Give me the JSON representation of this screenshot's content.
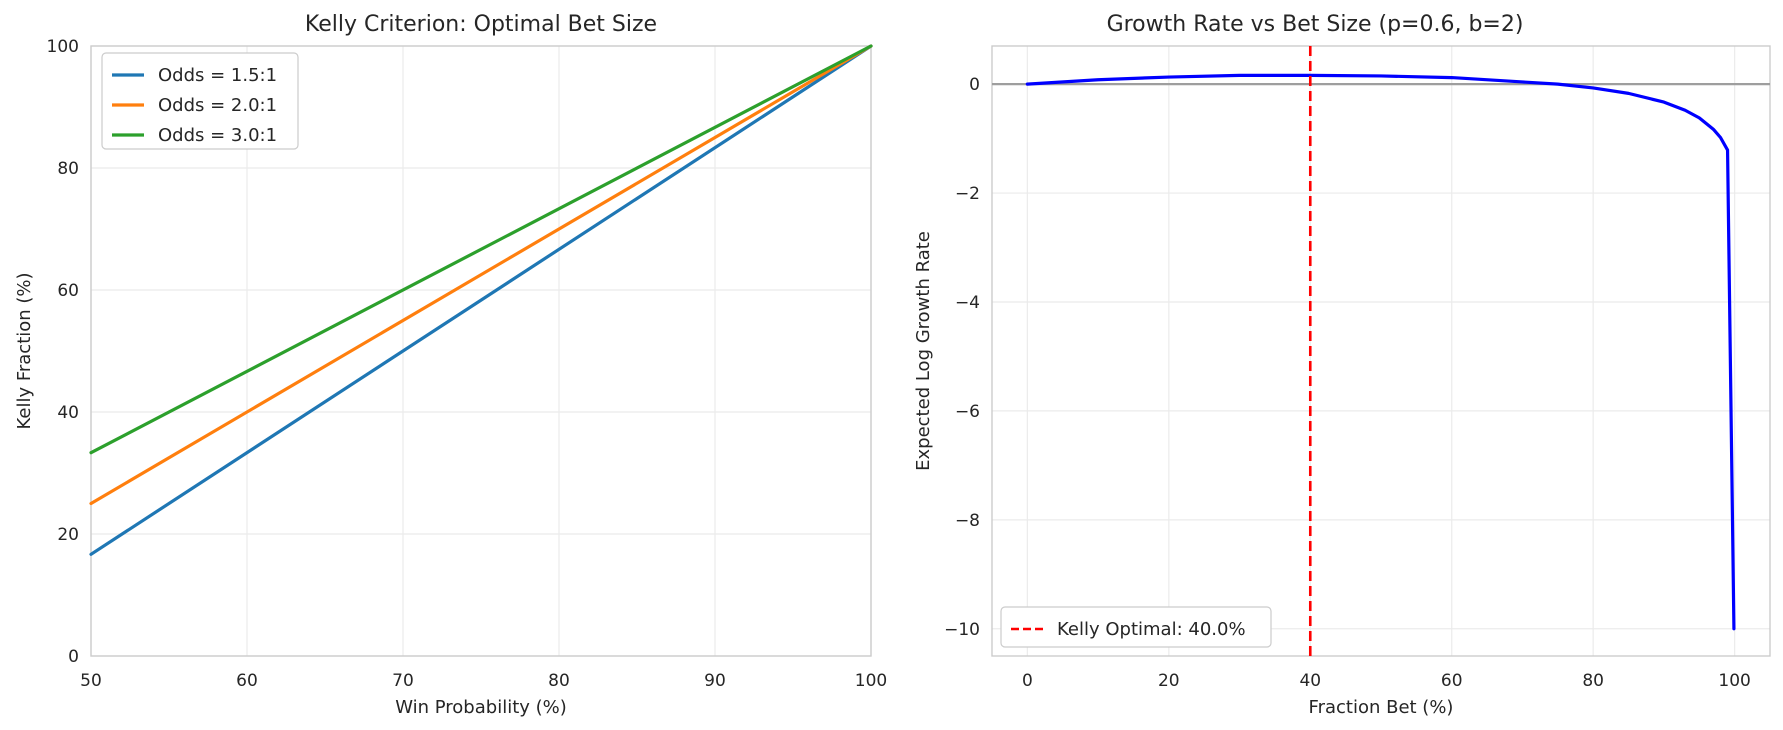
{
  "chart_data": [
    {
      "type": "line",
      "title": "Kelly Criterion: Optimal Bet Size",
      "xlabel": "Win Probability (%)",
      "ylabel": "Kelly Fraction (%)",
      "xlim": [
        50,
        100
      ],
      "ylim": [
        0,
        100
      ],
      "xticks": [
        50,
        60,
        70,
        80,
        90,
        100
      ],
      "yticks": [
        0,
        20,
        40,
        60,
        80,
        100
      ],
      "grid": true,
      "legend_position": "upper-left",
      "x": [
        50,
        100
      ],
      "series": [
        {
          "name": "Odds = 1.5:1",
          "color": "#1f77b4",
          "values": [
            16.67,
            100
          ]
        },
        {
          "name": "Odds = 2.0:1",
          "color": "#ff7f0e",
          "values": [
            25,
            100
          ]
        },
        {
          "name": "Odds = 3.0:1",
          "color": "#2ca02c",
          "values": [
            33.33,
            100
          ]
        }
      ]
    },
    {
      "type": "line",
      "title": "Growth Rate vs Bet Size (p=0.6, b=2)",
      "xlabel": "Fraction Bet (%)",
      "ylabel": "Expected Log Growth Rate",
      "xlim": [
        -5,
        105
      ],
      "ylim": [
        -10.5,
        0.7
      ],
      "xticks": [
        0,
        20,
        40,
        60,
        80,
        100
      ],
      "yticks": [
        0,
        -2,
        -4,
        -6,
        -8,
        -10
      ],
      "grid": true,
      "legend_position": "lower-left",
      "reference_line_y": 0,
      "reference_line_color": "#9e9e9e",
      "series": [
        {
          "name": "",
          "color": "#0000ff",
          "x": [
            0,
            10,
            20,
            30,
            40,
            50,
            60,
            70,
            75,
            80,
            85,
            90,
            93,
            95,
            97,
            98,
            99,
            99.9
          ],
          "values": [
            0,
            0.08,
            0.13,
            0.16,
            0.16,
            0.15,
            0.12,
            0.04,
            0,
            -0.07,
            -0.17,
            -0.33,
            -0.48,
            -0.62,
            -0.83,
            -0.98,
            -1.21,
            -10
          ]
        }
      ],
      "annotations": [
        {
          "type": "vline",
          "x": 40,
          "color": "#ff0000",
          "style": "dashed",
          "label": "Kelly Optimal: 40.0%"
        }
      ]
    }
  ]
}
